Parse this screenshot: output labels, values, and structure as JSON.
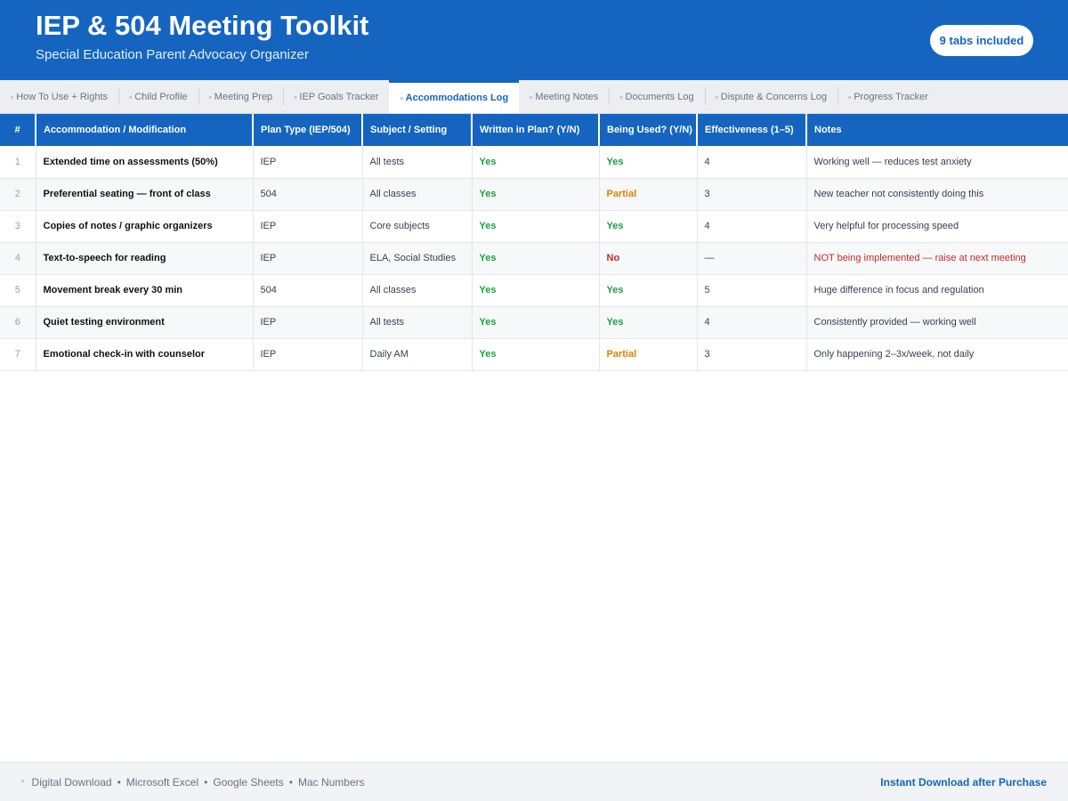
{
  "header": {
    "title": "IEP & 504 Meeting Toolkit",
    "subtitle": "Special Education Parent Advocacy Organizer",
    "badge": "9 tabs included"
  },
  "tabs": [
    {
      "label": "How To Use + Rights",
      "icon": "tab-icon",
      "active": false
    },
    {
      "label": "Child Profile",
      "icon": "tab-icon",
      "active": false
    },
    {
      "label": "Meeting Prep",
      "icon": "tab-icon",
      "active": false
    },
    {
      "label": "IEP Goals Tracker",
      "icon": "tab-icon",
      "active": false
    },
    {
      "label": "Accommodations Log",
      "icon": "tab-icon",
      "active": true
    },
    {
      "label": "Meeting Notes",
      "icon": "tab-icon",
      "active": false
    },
    {
      "label": "Documents Log",
      "icon": "tab-icon",
      "active": false
    },
    {
      "label": "Dispute & Concerns Log",
      "icon": "tab-icon",
      "active": false
    },
    {
      "label": "Progress Tracker",
      "icon": "tab-icon",
      "active": false
    }
  ],
  "table": {
    "columns": [
      "#",
      "Accommodation / Modification",
      "Plan Type (IEP/504)",
      "Subject / Setting",
      "Written in Plan? (Y/N)",
      "Being Used? (Y/N)",
      "Effectiveness (1–5)",
      "Notes"
    ],
    "rows": [
      {
        "num": "1",
        "name": "Extended time on assessments (50%)",
        "plan": "IEP",
        "setting": "All tests",
        "written": "Yes",
        "used": "Yes",
        "effect": "4",
        "notes": "Working well — reduces test anxiety"
      },
      {
        "num": "2",
        "name": "Preferential seating — front of class",
        "plan": "504",
        "setting": "All classes",
        "written": "Yes",
        "used": "Partial",
        "effect": "3",
        "notes": "New teacher not consistently doing this"
      },
      {
        "num": "3",
        "name": "Copies of notes / graphic organizers",
        "plan": "IEP",
        "setting": "Core subjects",
        "written": "Yes",
        "used": "Yes",
        "effect": "4",
        "notes": "Very helpful for processing speed"
      },
      {
        "num": "4",
        "name": "Text-to-speech for reading",
        "plan": "IEP",
        "setting": "ELA, Social Studies",
        "written": "Yes",
        "used": "No",
        "effect": "—",
        "notes": "NOT being implemented — raise at next meeting"
      },
      {
        "num": "5",
        "name": "Movement break every 30 min",
        "plan": "504",
        "setting": "All classes",
        "written": "Yes",
        "used": "Yes",
        "effect": "5",
        "notes": "Huge difference in focus and regulation"
      },
      {
        "num": "6",
        "name": "Quiet testing environment",
        "plan": "IEP",
        "setting": "All tests",
        "written": "Yes",
        "used": "Yes",
        "effect": "4",
        "notes": "Consistently provided — working well"
      },
      {
        "num": "7",
        "name": "Emotional check-in with counselor",
        "plan": "IEP",
        "setting": "Daily AM",
        "written": "Yes",
        "used": "Partial",
        "effect": "3",
        "notes": "Only happening 2–3x/week, not daily"
      }
    ]
  },
  "footer": {
    "icon": "download-icon",
    "items": [
      "Digital Download",
      "Microsoft Excel",
      "Google Sheets",
      "Mac Numbers"
    ],
    "separator": "•",
    "cta": "Instant Download after Purchase"
  },
  "colors": {
    "brand": "#1565c0",
    "yes": "#1e9e45",
    "partial": "#d98200",
    "no": "#c62828"
  }
}
